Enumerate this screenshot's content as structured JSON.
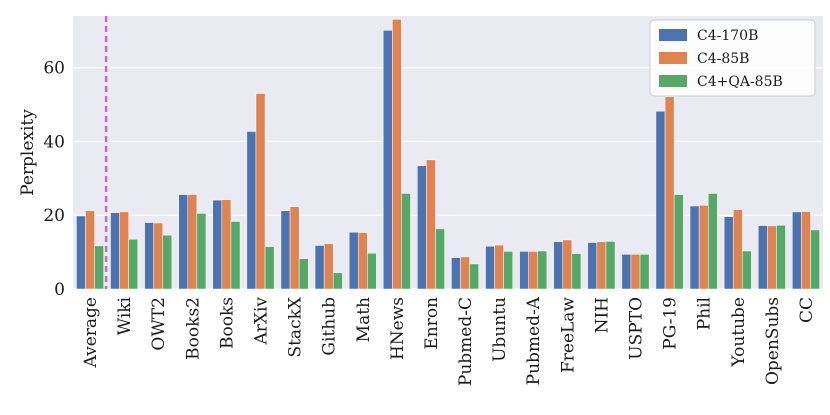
{
  "chart_data": {
    "type": "bar",
    "ylabel": "Perplexity",
    "xlabel": "",
    "ylim": [
      0,
      74
    ],
    "yticks": [
      0,
      20,
      40,
      60
    ],
    "grid": true,
    "legend_position": "top-right",
    "categories": [
      "Average",
      "Wiki",
      "OWT2",
      "Books2",
      "Books",
      "ArXiv",
      "StackX",
      "Github",
      "Math",
      "HNews",
      "Enron",
      "Pubmed-C",
      "Ubuntu",
      "Pubmed-A",
      "FreeLaw",
      "NIH",
      "USPTO",
      "PG-19",
      "Phil",
      "Youtube",
      "OpenSubs",
      "CC"
    ],
    "series": [
      {
        "name": "C4-170B",
        "color": "#4c72b0",
        "values": [
          19.8,
          20.7,
          18.0,
          25.6,
          24.1,
          42.7,
          21.2,
          11.8,
          15.4,
          70.1,
          33.4,
          8.5,
          11.6,
          10.2,
          12.8,
          12.6,
          9.4,
          48.2,
          22.5,
          19.6,
          17.2,
          20.9
        ]
      },
      {
        "name": "C4-85B",
        "color": "#dd8452",
        "values": [
          21.2,
          20.9,
          17.9,
          25.6,
          24.2,
          53.0,
          22.3,
          12.3,
          15.3,
          73.1,
          35.0,
          8.7,
          11.9,
          10.2,
          13.3,
          12.8,
          9.4,
          52.1,
          22.7,
          21.5,
          17.1,
          21.0
        ]
      },
      {
        "name": "C4+QA-85B",
        "color": "#55a868",
        "values": [
          11.7,
          13.5,
          14.6,
          20.5,
          18.3,
          11.5,
          8.2,
          4.4,
          9.7,
          25.9,
          16.3,
          6.8,
          10.2,
          10.3,
          9.6,
          12.9,
          9.4,
          25.6,
          25.9,
          10.3,
          17.3,
          16.0
        ]
      }
    ],
    "reference_line": {
      "position_category": "Average",
      "style": "dashed",
      "color": "#c86bc8"
    }
  }
}
